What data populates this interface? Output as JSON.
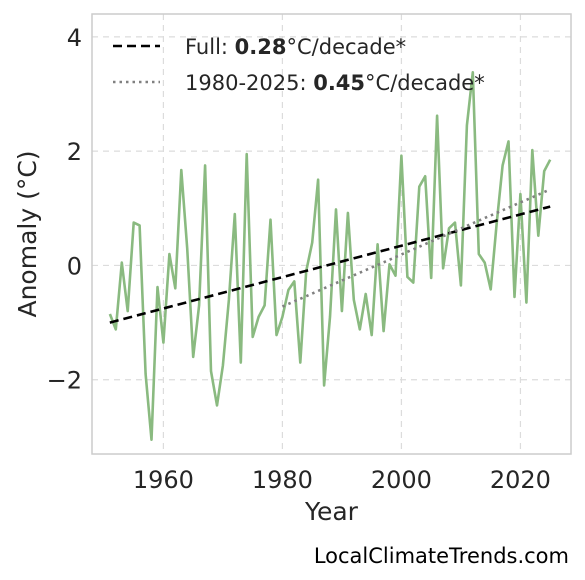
{
  "chart_data": {
    "type": "line",
    "xlabel": "Year",
    "ylabel": "Anomaly (°C)",
    "xlim": [
      1948,
      2028.5
    ],
    "ylim": [
      -3.3,
      4.4
    ],
    "xticks": [
      1960,
      1980,
      2000,
      2020
    ],
    "yticks": [
      {
        "value": -2,
        "label": "−2"
      },
      {
        "value": 0,
        "label": "0"
      },
      {
        "value": 2,
        "label": "2"
      },
      {
        "value": 4,
        "label": "4"
      }
    ],
    "grid": true,
    "legend_position": "top-left",
    "series": [
      {
        "kind": "data",
        "color": "#8aba80",
        "x": [
          1951,
          1952,
          1953,
          1954,
          1955,
          1956,
          1957,
          1958,
          1959,
          1960,
          1961,
          1962,
          1963,
          1964,
          1965,
          1966,
          1967,
          1968,
          1969,
          1970,
          1971,
          1972,
          1973,
          1974,
          1975,
          1976,
          1977,
          1978,
          1979,
          1980,
          1981,
          1982,
          1983,
          1984,
          1985,
          1986,
          1987,
          1988,
          1989,
          1990,
          1991,
          1992,
          1993,
          1994,
          1995,
          1996,
          1997,
          1998,
          1999,
          2000,
          2001,
          2002,
          2003,
          2004,
          2005,
          2006,
          2007,
          2008,
          2009,
          2010,
          2011,
          2012,
          2013,
          2014,
          2015,
          2016,
          2017,
          2018,
          2019,
          2020,
          2021,
          2022,
          2023,
          2024,
          2025
        ],
        "y": [
          -0.85,
          -1.12,
          0.05,
          -0.8,
          0.75,
          0.7,
          -1.9,
          -3.05,
          -0.38,
          -1.35,
          0.2,
          -0.4,
          1.67,
          0.3,
          -1.6,
          -0.7,
          1.75,
          -1.85,
          -2.45,
          -1.75,
          -0.6,
          0.9,
          -1.7,
          1.95,
          -1.25,
          -0.9,
          -0.7,
          0.8,
          -1.22,
          -0.9,
          -0.43,
          -0.28,
          -1.7,
          -0.1,
          0.4,
          1.5,
          -2.1,
          -0.9,
          0.98,
          -0.8,
          0.92,
          -0.6,
          -1.12,
          -0.5,
          -1.22,
          0.37,
          -1.15,
          0.02,
          -0.18,
          1.92,
          -0.2,
          -0.3,
          1.38,
          1.56,
          -0.22,
          2.62,
          -0.05,
          0.65,
          0.75,
          -0.35,
          2.45,
          3.38,
          0.2,
          0.05,
          -0.42,
          0.72,
          1.75,
          2.17,
          -0.55,
          1.25,
          -0.65,
          2.02,
          0.52,
          1.65,
          1.85
        ]
      },
      {
        "kind": "trend",
        "name_prefix": "Full: ",
        "name_value": "0.28",
        "name_suffix": "°C/decade*",
        "style": "dashed",
        "color": "#000000",
        "x": [
          1951,
          2025
        ],
        "y": [
          -1.0,
          1.03
        ]
      },
      {
        "kind": "trend",
        "name_prefix": "1980-2025: ",
        "name_value": "0.45",
        "name_suffix": "°C/decade*",
        "style": "dotted",
        "color": "#808080",
        "x": [
          1980,
          2025
        ],
        "y": [
          -0.72,
          1.33
        ]
      }
    ]
  },
  "footer": {
    "attribution": "LocalClimateTrends.com"
  }
}
